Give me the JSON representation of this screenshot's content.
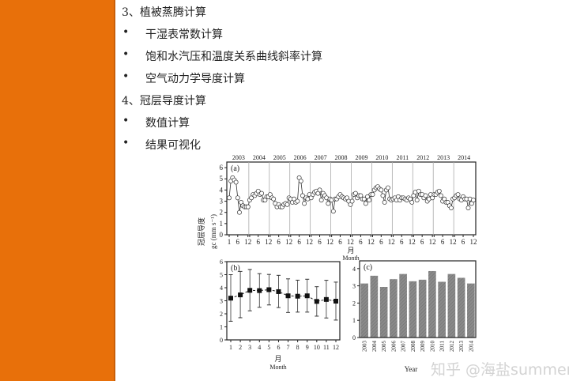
{
  "outline": {
    "items": [
      {
        "type": "heading",
        "text": "3、植被蒸腾计算"
      },
      {
        "type": "bullet",
        "text": "干湿表常数计算"
      },
      {
        "type": "bullet",
        "text": "饱和水汽压和温度关系曲线斜率计算"
      },
      {
        "type": "bullet",
        "text": "空气动力学导度计算"
      },
      {
        "type": "heading",
        "text": "4、冠层导度计算"
      },
      {
        "type": "bullet",
        "text": "数值计算"
      },
      {
        "type": "bullet",
        "text": "结果可视化"
      }
    ],
    "bullet_char": "•"
  },
  "colors": {
    "sidebar": "#E8700A",
    "bars": "#8a8a8a"
  },
  "watermark": "知乎 @海盐summer",
  "chart_data": [
    {
      "type": "line",
      "panel_label": "(a)",
      "ylabel_cn": "冠层导度",
      "ylabel": "gc (mm s⁻¹)",
      "xlabel_cn": "月",
      "xlabel": "Month",
      "ylim": [
        0,
        6.5
      ],
      "yticks": [
        0,
        1,
        2,
        3,
        4,
        5,
        6
      ],
      "xtick_labels": [
        "1",
        "6",
        "12"
      ],
      "years": [
        "2003",
        "2004",
        "2005",
        "2006",
        "2007",
        "2008",
        "2009",
        "2010",
        "2011",
        "2012",
        "2013",
        "2014"
      ],
      "marker": "open-circle",
      "values": [
        [
          3.3,
          4.8,
          5.1,
          4.9,
          4.7,
          3.3,
          2.0,
          2.9,
          2.6,
          2.5,
          2.5,
          2.5
        ],
        [
          3.1,
          3.3,
          3.6,
          3.5,
          3.7,
          3.9,
          3.6,
          3.7,
          3.1,
          3.1,
          3.4,
          3.4
        ],
        [
          3.6,
          3.3,
          3.2,
          2.8,
          2.5,
          2.7,
          2.5,
          2.5,
          2.7,
          2.8,
          2.7,
          3.3
        ],
        [
          3.2,
          2.9,
          3.2,
          2.9,
          3.0,
          5.1,
          4.8,
          3.5,
          2.8,
          3.3,
          3.2,
          3.6
        ],
        [
          3.3,
          3.6,
          3.8,
          3.9,
          3.7,
          4.0,
          3.1,
          3.7,
          3.5,
          3.3,
          2.8,
          3.2
        ],
        [
          3.1,
          2.1,
          3.2,
          3.2,
          3.4,
          3.6,
          3.4,
          3.3,
          3.2,
          3.3,
          3.0,
          2.7
        ],
        [
          3.0,
          3.6,
          3.7,
          3.3,
          3.5,
          3.5,
          3.2,
          3.2,
          2.8,
          3.4,
          3.1,
          3.6
        ],
        [
          3.6,
          4.0,
          4.2,
          4.3,
          4.1,
          4.0,
          3.5,
          2.9,
          4.0,
          4.2,
          3.2,
          3.1
        ],
        [
          3.2,
          3.3,
          3.1,
          3.4,
          3.1,
          3.3,
          3.3,
          3.2,
          3.1,
          3.3,
          3.2,
          2.9
        ],
        [
          3.5,
          3.8,
          3.1,
          3.9,
          3.6,
          3.6,
          3.3,
          3.5,
          3.0,
          3.2,
          3.6,
          3.3
        ],
        [
          3.6,
          3.6,
          3.8,
          3.9,
          3.5,
          3.0,
          3.2,
          2.9,
          2.9,
          2.6,
          2.4,
          3.2
        ],
        [
          3.3,
          3.5,
          3.6,
          3.2,
          3.1,
          3.4,
          3.2,
          3.2,
          2.4,
          3.2,
          2.8,
          3.1
        ]
      ]
    },
    {
      "type": "line",
      "panel_label": "(b)",
      "xlabel_cn": "月",
      "xlabel": "Month",
      "ylim": [
        0,
        6
      ],
      "yticks": [
        0,
        1,
        2,
        3,
        4,
        5,
        6
      ],
      "categories": [
        "1",
        "2",
        "3",
        "4",
        "5",
        "6",
        "7",
        "8",
        "9",
        "10",
        "11",
        "12"
      ],
      "values": [
        3.2,
        3.45,
        3.8,
        3.78,
        3.85,
        3.7,
        3.38,
        3.35,
        3.38,
        2.95,
        3.1,
        2.97
      ],
      "error_upper": [
        5.0,
        5.25,
        5.4,
        5.08,
        5.02,
        4.95,
        4.68,
        4.58,
        4.65,
        4.08,
        4.57,
        4.43
      ],
      "error_lower": [
        1.43,
        1.7,
        2.23,
        2.5,
        2.68,
        2.48,
        2.1,
        2.13,
        2.13,
        1.82,
        1.68,
        1.52
      ],
      "marker": "filled-square",
      "line_style": "dashed"
    },
    {
      "type": "bar",
      "panel_label": "(c)",
      "xlabel": "Year",
      "ylim": [
        0,
        4.45
      ],
      "yticks": [
        0,
        1,
        2,
        3,
        4
      ],
      "categories": [
        "2003",
        "2004",
        "2005",
        "2006",
        "2007",
        "2008",
        "2009",
        "2010",
        "2011",
        "2012",
        "2013",
        "2014"
      ],
      "values": [
        3.15,
        3.6,
        2.95,
        3.4,
        3.7,
        3.28,
        3.37,
        3.87,
        3.25,
        3.7,
        3.48,
        3.15
      ]
    }
  ]
}
